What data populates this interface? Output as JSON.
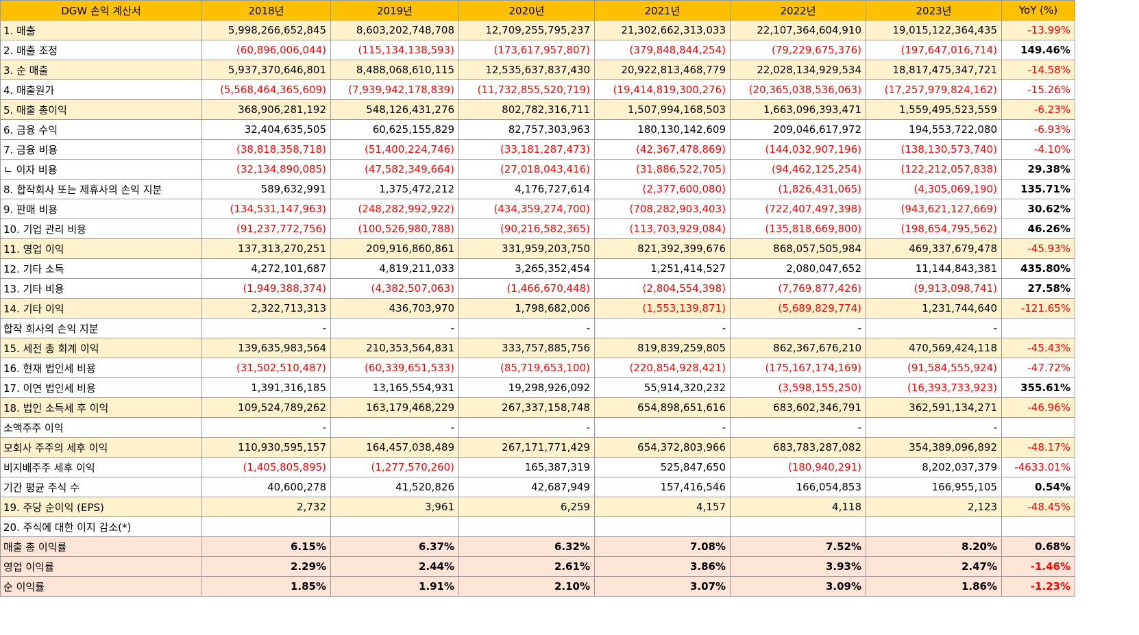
{
  "header": [
    "DGW 손익 계산서",
    "2018년",
    "2019년",
    "2020년",
    "2021년",
    "2022년",
    "2023년",
    "YoY (%)"
  ],
  "rows": [
    {
      "label": "1. 매출",
      "style": "hl",
      "values": [
        "5,998,266,652,845",
        "8,603,202,748,708",
        "12,709,255,795,237",
        "21,302,662,313,033",
        "22,107,364,604,910",
        "19,015,122,364,435"
      ],
      "yoy": "-13.99%"
    },
    {
      "label": "2. 매출 조정",
      "style": "plain",
      "values": [
        "(60,896,006,044)",
        "(115,134,138,593)",
        "(173,617,957,807)",
        "(379,848,844,254)",
        "(79,229,675,376)",
        "(197,647,016,714)"
      ],
      "yoy": "149.46%"
    },
    {
      "label": "3. 순 매출",
      "style": "hl",
      "values": [
        "5,937,370,646,801",
        "8,488,068,610,115",
        "12,535,637,837,430",
        "20,922,813,468,779",
        "22,028,134,929,534",
        "18,817,475,347,721"
      ],
      "yoy": "-14.58%"
    },
    {
      "label": "4. 매출원가",
      "style": "plain",
      "values": [
        "(5,568,464,365,609)",
        "(7,939,942,178,839)",
        "(11,732,855,520,719)",
        "(19,414,819,300,276)",
        "(20,365,038,536,063)",
        "(17,257,979,824,162)"
      ],
      "yoy": "-15.26%"
    },
    {
      "label": "5. 매출 총이익",
      "style": "hl",
      "values": [
        "368,906,281,192",
        "548,126,431,276",
        "802,782,316,711",
        "1,507,994,168,503",
        "1,663,096,393,471",
        "1,559,495,523,559"
      ],
      "yoy": "-6.23%"
    },
    {
      "label": "6. 금융 수익",
      "style": "plain",
      "values": [
        "32,404,635,505",
        "60,625,155,829",
        "82,757,303,963",
        "180,130,142,609",
        "209,046,617,972",
        "194,553,722,080"
      ],
      "yoy": "-6.93%"
    },
    {
      "label": "7. 금융 비용",
      "style": "plain",
      "values": [
        "(38,818,358,718)",
        "(51,400,224,746)",
        "(33,181,287,473)",
        "(42,367,478,869)",
        "(144,032,907,196)",
        "(138,130,573,740)"
      ],
      "yoy": "-4.10%"
    },
    {
      "label": "   ㄴ 이자 비용",
      "style": "plain",
      "values": [
        "(32,134,890,085)",
        "(47,582,349,664)",
        "(27,018,043,416)",
        "(31,886,522,705)",
        "(94,462,125,254)",
        "(122,212,057,838)"
      ],
      "yoy": "29.38%"
    },
    {
      "label": "8. 합작회사 또는 제휴사의 손익 지분",
      "style": "plain",
      "values": [
        "589,632,991",
        "1,375,472,212",
        "4,176,727,614",
        "(2,377,600,080)",
        "(1,826,431,065)",
        "(4,305,069,190)"
      ],
      "yoy": "135.71%"
    },
    {
      "label": "9. 판매 비용",
      "style": "plain",
      "values": [
        "(134,531,147,963)",
        "(248,282,992,922)",
        "(434,359,274,700)",
        "(708,282,903,403)",
        "(722,407,497,398)",
        "(943,621,127,669)"
      ],
      "yoy": "30.62%"
    },
    {
      "label": "10. 기업 관리 비용",
      "style": "plain",
      "values": [
        "(91,237,772,756)",
        "(100,526,980,788)",
        "(90,216,582,365)",
        "(113,703,929,084)",
        "(135,818,669,800)",
        "(198,654,795,562)"
      ],
      "yoy": "46.26%"
    },
    {
      "label": "11. 영업 이익",
      "style": "hl",
      "values": [
        "137,313,270,251",
        "209,916,860,861",
        "331,959,203,750",
        "821,392,399,676",
        "868,057,505,984",
        "469,337,679,478"
      ],
      "yoy": "-45.93%"
    },
    {
      "label": "12. 기타 소득",
      "style": "plain",
      "values": [
        "4,272,101,687",
        "4,819,211,033",
        "3,265,352,454",
        "1,251,414,527",
        "2,080,047,652",
        "11,144,843,381"
      ],
      "yoy": "435.80%"
    },
    {
      "label": "13. 기타 비용",
      "style": "plain",
      "values": [
        "(1,949,388,374)",
        "(4,382,507,063)",
        "(1,466,670,448)",
        "(2,804,554,398)",
        "(7,769,877,426)",
        "(9,913,098,741)"
      ],
      "yoy": "27.58%"
    },
    {
      "label": "14. 기타 이익",
      "style": "hl",
      "values": [
        "2,322,713,313",
        "436,703,970",
        "1,798,682,006",
        "(1,553,139,871)",
        "(5,689,829,774)",
        "1,231,744,640"
      ],
      "yoy": "-121.65%"
    },
    {
      "label": "합작 회사의 손익 지분",
      "style": "plain",
      "values": [
        "-",
        "-",
        "-",
        "-",
        "-",
        "-"
      ],
      "yoy": ""
    },
    {
      "label": "15. 세전 총 회계 이익",
      "style": "hl",
      "values": [
        "139,635,983,564",
        "210,353,564,831",
        "333,757,885,756",
        "819,839,259,805",
        "862,367,676,210",
        "470,569,424,118"
      ],
      "yoy": "-45.43%"
    },
    {
      "label": "16. 현재 법인세 비용",
      "style": "plain",
      "values": [
        "(31,502,510,487)",
        "(60,339,651,533)",
        "(85,719,653,100)",
        "(220,854,928,421)",
        "(175,167,174,169)",
        "(91,584,555,924)"
      ],
      "yoy": "-47.72%"
    },
    {
      "label": "17. 이연 법인세 비용",
      "style": "plain",
      "values": [
        "1,391,316,185",
        "13,165,554,931",
        "19,298,926,092",
        "55,914,320,232",
        "(3,598,155,250)",
        "(16,393,733,923)"
      ],
      "yoy": "355.61%"
    },
    {
      "label": "18. 법인 소득세 후 이익",
      "style": "hl",
      "values": [
        "109,524,789,262",
        "163,179,468,229",
        "267,337,158,748",
        "654,898,651,616",
        "683,602,346,791",
        "362,591,134,271"
      ],
      "yoy": "-46.96%"
    },
    {
      "label": "소액주주 이익",
      "style": "plain",
      "values": [
        "-",
        "-",
        "-",
        "-",
        "-",
        "-"
      ],
      "yoy": ""
    },
    {
      "label": "모회사 주주의 세후 이익",
      "style": "hl",
      "values": [
        "110,930,595,157",
        "164,457,038,489",
        "267,171,771,429",
        "654,372,803,966",
        "683,783,287,082",
        "354,389,096,892"
      ],
      "yoy": "-48.17%"
    },
    {
      "label": "비지배주주 세후 이익",
      "style": "plain",
      "values": [
        "(1,405,805,895)",
        "(1,277,570,260)",
        "165,387,319",
        "525,847,650",
        "(180,940,291)",
        "8,202,037,379"
      ],
      "yoy": "-4633.01%"
    },
    {
      "label": "기간 평균 주식 수",
      "style": "plain",
      "values": [
        "40,600,278",
        "41,520,826",
        "42,687,949",
        "157,416,546",
        "166,054,853",
        "166,955,105"
      ],
      "yoy": "0.54%"
    },
    {
      "label": "19. 주당 순이익 (EPS)",
      "style": "hl",
      "values": [
        "2,732",
        "3,961",
        "6,259",
        "4,157",
        "4,118",
        "2,123"
      ],
      "yoy": "-48.45%"
    },
    {
      "label": "20. 주식에 대한 이지 감소(*)",
      "style": "plain",
      "values": [
        "",
        "",
        "",
        "",
        "",
        ""
      ],
      "yoy": ""
    },
    {
      "label": "매출 총 이익률",
      "style": "ratio",
      "values": [
        "6.15%",
        "6.37%",
        "6.32%",
        "7.08%",
        "7.52%",
        "8.20%"
      ],
      "yoy": "0.68%"
    },
    {
      "label": "영업 이익률",
      "style": "ratio",
      "values": [
        "2.29%",
        "2.44%",
        "2.61%",
        "3.86%",
        "3.93%",
        "2.47%"
      ],
      "yoy": "-1.46%"
    },
    {
      "label": "순 이익률",
      "style": "ratio",
      "values": [
        "1.85%",
        "1.91%",
        "2.10%",
        "3.07%",
        "3.09%",
        "1.86%"
      ],
      "yoy": "-1.23%"
    }
  ]
}
